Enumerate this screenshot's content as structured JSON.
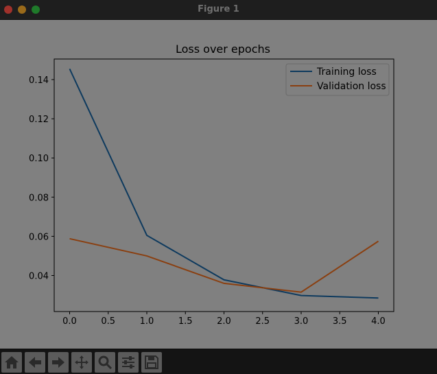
{
  "window": {
    "title": "Figure 1"
  },
  "toolbar": {
    "tools": [
      {
        "name": "home-icon"
      },
      {
        "name": "back-arrow-icon"
      },
      {
        "name": "forward-arrow-icon"
      },
      {
        "name": "pan-move-icon"
      },
      {
        "name": "zoom-magnifier-icon"
      },
      {
        "name": "configure-subplots-icon"
      },
      {
        "name": "save-floppy-icon"
      }
    ]
  },
  "colors": {
    "training": "#0e3a5e",
    "validation": "#8a3f10",
    "axes_bg": "#808080",
    "text": "#000000"
  },
  "chart_data": {
    "type": "line",
    "title": "Loss over epochs",
    "xlabel": "",
    "ylabel": "",
    "x": [
      0.0,
      1.0,
      2.0,
      3.0,
      4.0
    ],
    "xlim": [
      -0.2,
      4.2
    ],
    "ylim": [
      0.0216,
      0.1505
    ],
    "xticks": [
      "0.0",
      "0.5",
      "1.0",
      "1.5",
      "2.0",
      "2.5",
      "3.0",
      "3.5",
      "4.0"
    ],
    "yticks": [
      "0.04",
      "0.06",
      "0.08",
      "0.10",
      "0.12",
      "0.14"
    ],
    "grid": false,
    "legend_position": "top-right",
    "series": [
      {
        "name": "Training loss",
        "values": [
          0.1455,
          0.0605,
          0.0378,
          0.0298,
          0.0285
        ]
      },
      {
        "name": "Validation loss",
        "values": [
          0.0588,
          0.05,
          0.036,
          0.0315,
          0.0575
        ]
      }
    ]
  }
}
